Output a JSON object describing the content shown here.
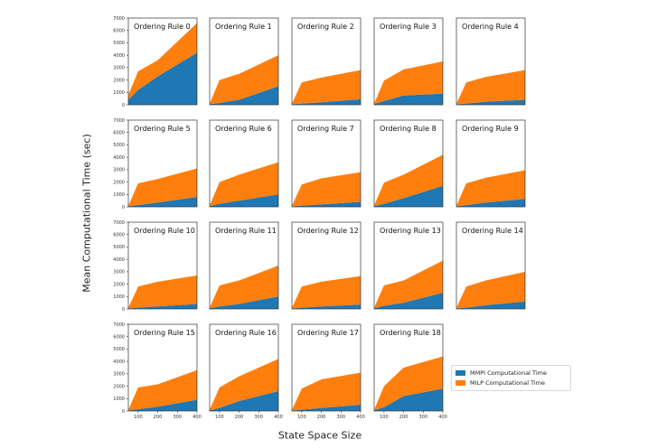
{
  "figure": {
    "y_axis_label": "Mean Computational Time (sec)",
    "x_axis_label": "State Space Size"
  },
  "legend": {
    "entries": [
      {
        "label": "MMPI Computational Time",
        "color": "#1f77b4"
      },
      {
        "label": "MILP Computational Time",
        "color": "#ff7f0e"
      }
    ],
    "position": "lower-right"
  },
  "chart_data": {
    "type": "area",
    "stacked": true,
    "x": [
      50,
      100,
      200,
      400
    ],
    "xticks": [
      "100",
      "200",
      "300",
      "400"
    ],
    "xlim": [
      50,
      400
    ],
    "ylim": [
      0,
      7000
    ],
    "yticks": [
      "0",
      "1000",
      "2000",
      "3000",
      "4000",
      "5000",
      "6000",
      "7000"
    ],
    "grid": false,
    "series_names": [
      "MMPI Computational Time",
      "MILP Computational Time"
    ],
    "series_colors": [
      "#1f77b4",
      "#ff7f0e"
    ],
    "panels": [
      {
        "title": "Ordering Rule 0",
        "mmpi": [
          400,
          1200,
          2300,
          4200
        ],
        "milp": [
          400,
          1500,
          1300,
          2400
        ]
      },
      {
        "title": "Ordering Rule 1",
        "mmpi": [
          50,
          150,
          400,
          1500
        ],
        "milp": [
          50,
          1850,
          2100,
          2500
        ]
      },
      {
        "title": "Ordering Rule 2",
        "mmpi": [
          40,
          100,
          200,
          450
        ],
        "milp": [
          40,
          1700,
          2000,
          2350
        ]
      },
      {
        "title": "Ordering Rule 3",
        "mmpi": [
          50,
          300,
          750,
          900
        ],
        "milp": [
          50,
          1650,
          2100,
          2600
        ]
      },
      {
        "title": "Ordering Rule 4",
        "mmpi": [
          40,
          100,
          250,
          400
        ],
        "milp": [
          40,
          1700,
          2000,
          2400
        ]
      },
      {
        "title": "Ordering Rule 5",
        "mmpi": [
          40,
          150,
          350,
          800
        ],
        "milp": [
          40,
          1750,
          1900,
          2300
        ]
      },
      {
        "title": "Ordering Rule 6",
        "mmpi": [
          50,
          250,
          500,
          1000
        ],
        "milp": [
          50,
          1750,
          2100,
          2600
        ]
      },
      {
        "title": "Ordering Rule 7",
        "mmpi": [
          40,
          100,
          200,
          400
        ],
        "milp": [
          40,
          1700,
          2100,
          2400
        ]
      },
      {
        "title": "Ordering Rule 8",
        "mmpi": [
          50,
          250,
          700,
          1700
        ],
        "milp": [
          50,
          1700,
          1900,
          2500
        ]
      },
      {
        "title": "Ordering Rule 9",
        "mmpi": [
          40,
          150,
          350,
          650
        ],
        "milp": [
          40,
          1750,
          2000,
          2300
        ]
      },
      {
        "title": "Ordering Rule 10",
        "mmpi": [
          40,
          100,
          200,
          400
        ],
        "milp": [
          40,
          1700,
          2000,
          2300
        ]
      },
      {
        "title": "Ordering Rule 11",
        "mmpi": [
          50,
          200,
          400,
          1000
        ],
        "milp": [
          50,
          1700,
          1900,
          2500
        ]
      },
      {
        "title": "Ordering Rule 12",
        "mmpi": [
          40,
          100,
          200,
          350
        ],
        "milp": [
          40,
          1700,
          2000,
          2300
        ]
      },
      {
        "title": "Ordering Rule 13",
        "mmpi": [
          50,
          250,
          500,
          1300
        ],
        "milp": [
          50,
          1650,
          1800,
          2600
        ]
      },
      {
        "title": "Ordering Rule 14",
        "mmpi": [
          40,
          100,
          300,
          600
        ],
        "milp": [
          40,
          1700,
          2000,
          2400
        ]
      },
      {
        "title": "Ordering Rule 15",
        "mmpi": [
          40,
          150,
          350,
          900
        ],
        "milp": [
          40,
          1750,
          1800,
          2400
        ]
      },
      {
        "title": "Ordering Rule 16",
        "mmpi": [
          50,
          250,
          800,
          1600
        ],
        "milp": [
          50,
          1650,
          2000,
          2600
        ]
      },
      {
        "title": "Ordering Rule 17",
        "mmpi": [
          40,
          100,
          250,
          500
        ],
        "milp": [
          40,
          1700,
          2300,
          2600
        ]
      },
      {
        "title": "Ordering Rule 18",
        "mmpi": [
          50,
          300,
          1200,
          1800
        ],
        "milp": [
          50,
          1700,
          2300,
          2600
        ]
      }
    ]
  }
}
